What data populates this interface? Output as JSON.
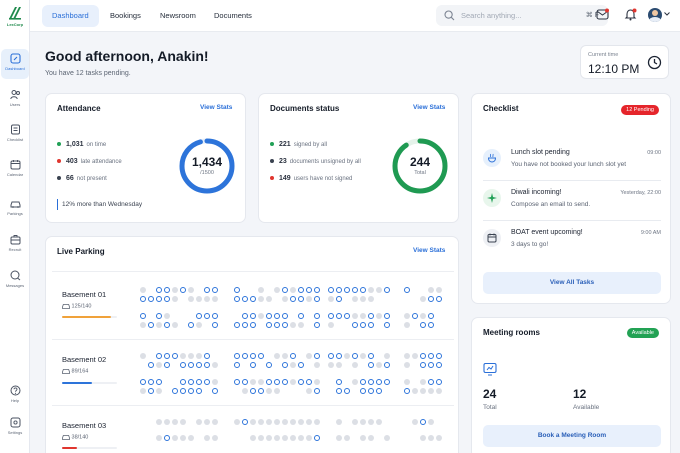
{
  "sidebar": {
    "logo_text": "LexCorp",
    "items": [
      {
        "label": "Dashboard",
        "icon": "dashboard-icon"
      },
      {
        "label": "Users",
        "icon": "users-icon"
      },
      {
        "label": "Checklist",
        "icon": "checklist-icon"
      },
      {
        "label": "Calendar",
        "icon": "calendar-icon"
      },
      {
        "label": "Parkings",
        "icon": "car-icon"
      },
      {
        "label": "Recruit",
        "icon": "briefcase-icon"
      },
      {
        "label": "Messages",
        "icon": "messages-icon"
      },
      {
        "label": "Help",
        "icon": "help-icon"
      },
      {
        "label": "Settings",
        "icon": "settings-icon"
      }
    ]
  },
  "header": {
    "tabs": [
      "Dashboard",
      "Bookings",
      "Newsroom",
      "Documents"
    ],
    "search": {
      "placeholder": "Search anything...",
      "shortcut": "⌘ F"
    }
  },
  "greeting": {
    "title": "Good afternoon, Anakin!",
    "subtitle": "You have 12 tasks pending."
  },
  "time": {
    "label": "Current time",
    "value": "12:10 PM"
  },
  "attendance": {
    "title": "Attendance",
    "view_stats": "View Stats",
    "rows": [
      {
        "num": "1,031",
        "label": "on time",
        "color": "#21a056"
      },
      {
        "num": "403",
        "label": "late attendance",
        "color": "#e0362f"
      },
      {
        "num": "66",
        "label": "not present",
        "color": "#3a4250"
      }
    ],
    "note": "12% more than Wednesday",
    "donut": {
      "value": "1,434",
      "sub": "/1500",
      "fraction": 0.956,
      "color": "#2d74da"
    }
  },
  "documents": {
    "title": "Documents status",
    "view_stats": "View Stats",
    "rows": [
      {
        "num": "221",
        "label": "signed by all",
        "color": "#21a056"
      },
      {
        "num": "23",
        "label": "documents unsigned by all",
        "color": "#3a4250"
      },
      {
        "num": "149",
        "label": "users have not signed",
        "color": "#e0362f"
      }
    ],
    "donut": {
      "value": "244",
      "sub": "Total",
      "fraction": 0.906,
      "color": "#1f9a52"
    }
  },
  "checklist": {
    "title": "Checklist",
    "badge": "12 Pending",
    "items": [
      {
        "title": "Lunch slot pending",
        "sub": "You have not booked your lunch slot yet",
        "time": "09:00",
        "icon": "food-icon"
      },
      {
        "title": "Diwali incoming!",
        "sub": "Compose an email to send.",
        "time": "Yesterday, 22:00",
        "icon": "sparkle-icon"
      },
      {
        "title": "BOAT event upcoming!",
        "sub": "3 days to go!",
        "time": "9:00 AM",
        "icon": "calendar-icon"
      }
    ],
    "button": "View All Tasks"
  },
  "parking": {
    "title": "Live Parking",
    "view_stats": "View Stats",
    "basements": [
      {
        "name": "Basement 01",
        "count": "125/140",
        "fraction": 0.89,
        "color": "#f0a23a"
      },
      {
        "name": "Basement 02",
        "count": "89/164",
        "fraction": 0.54,
        "color": "#2d74da"
      },
      {
        "name": "Basement 03",
        "count": "38/140",
        "fraction": 0.27,
        "color": "#e0362f"
      }
    ]
  },
  "meeting": {
    "title": "Meeting rooms",
    "badge": "Available",
    "total_value": "24",
    "total_label": "Total",
    "available_value": "12",
    "available_label": "Available",
    "button": "Book a Meeting Room"
  }
}
